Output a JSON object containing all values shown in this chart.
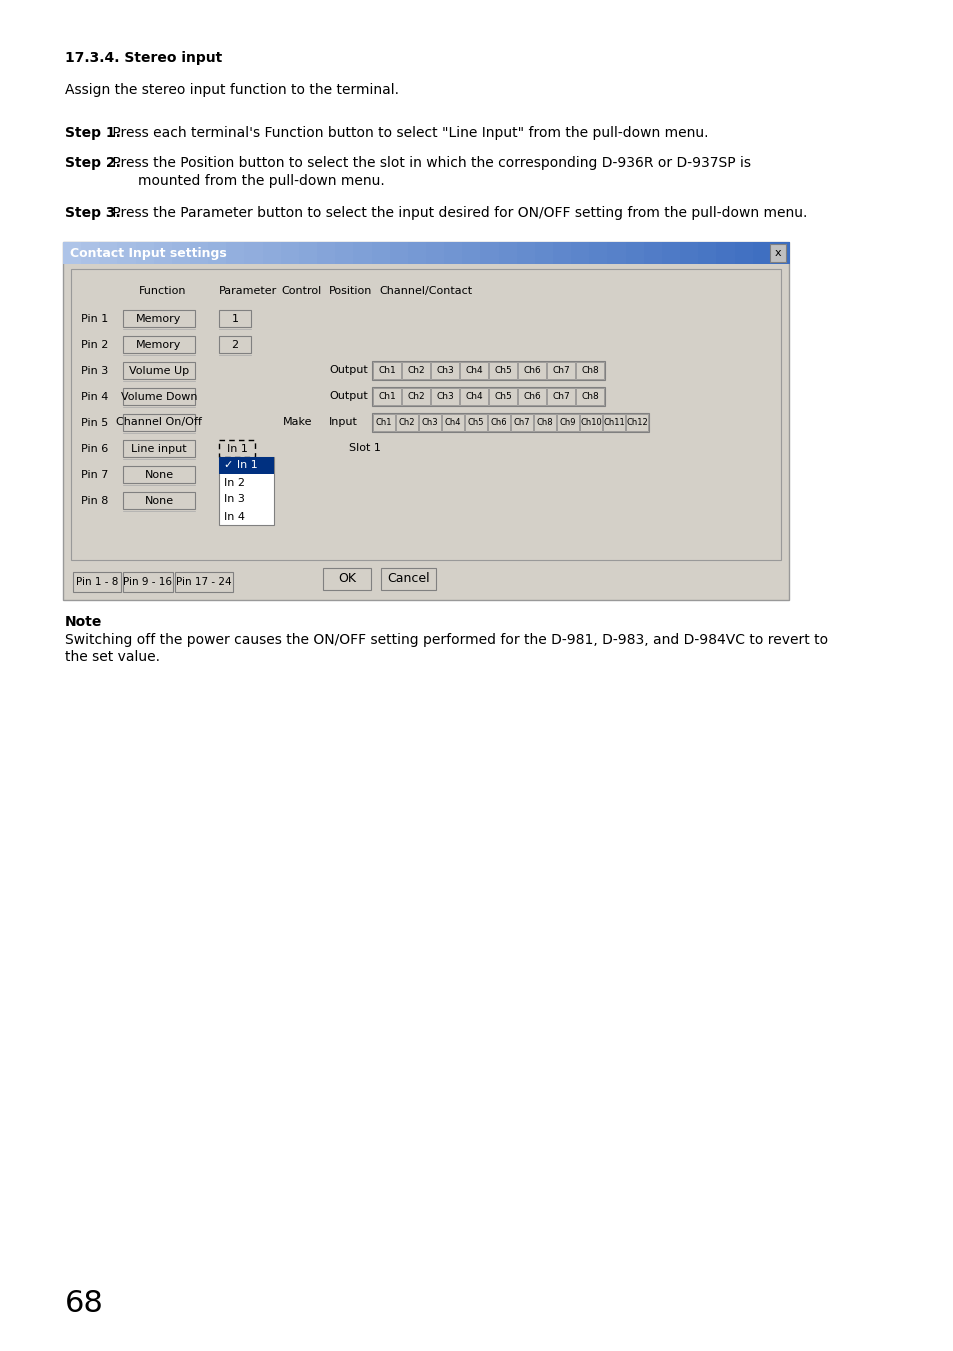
{
  "page_bg": "#ffffff",
  "page_num": "68",
  "title": "17.3.4. Stereo input",
  "intro": "Assign the stereo input function to the terminal.",
  "step1_bold": "Step 1.",
  "step1_rest": " Press each terminal's Function button to select \"Line Input\" from the pull-down menu.",
  "step2_bold": "Step 2.",
  "step2_line1": " Press the Position button to select the slot in which the corresponding D-936R or D-937SP is",
  "step2_line2": "mounted from the pull-down menu.",
  "step3_bold": "Step 3.",
  "step3_rest": " Press the Parameter button to select the input desired for ON/OFF setting from the pull-down menu.",
  "dialog_title": "Contact Input settings",
  "dialog_title_bg_left": "#aec4e8",
  "dialog_title_bg_right": "#3a6bbf",
  "dialog_title_text_color": "#ffffff",
  "dialog_bg": "#d4d0c8",
  "col_headers": [
    "Function",
    "Parameter",
    "Control",
    "Position",
    "Channel/Contact"
  ],
  "pins": [
    "Pin 1",
    "Pin 2",
    "Pin 3",
    "Pin 4",
    "Pin 5",
    "Pin 6",
    "Pin 7",
    "Pin 8"
  ],
  "pin_functions": [
    "Memory",
    "Memory",
    "Volume Up",
    "Volume Down",
    "Channel On/Off",
    "Line input",
    "None",
    "None"
  ],
  "pin_params": [
    "1",
    "2",
    "",
    "",
    "",
    "",
    "",
    ""
  ],
  "ch_buttons_8": [
    "Ch1",
    "Ch2",
    "Ch3",
    "Ch4",
    "Ch5",
    "Ch6",
    "Ch7",
    "Ch8"
  ],
  "ch_buttons_12": [
    "Ch1",
    "Ch2",
    "Ch3",
    "Ch4",
    "Ch5",
    "Ch6",
    "Ch7",
    "Ch8",
    "Ch9",
    "Ch10",
    "Ch11",
    "Ch12"
  ],
  "dropdown_items": [
    "✓ In 1",
    "In 2",
    "In 3",
    "In 4"
  ],
  "tab_labels": [
    "Pin 1 - 8",
    "Pin 9 - 16",
    "Pin 17 - 24"
  ],
  "bottom_buttons": [
    "OK",
    "Cancel"
  ],
  "note_bold": "Note",
  "note_line1": "Switching off the power causes the ON/OFF setting performed for the D-981, D-983, and D-984VC to revert to",
  "note_line2": "the set value."
}
